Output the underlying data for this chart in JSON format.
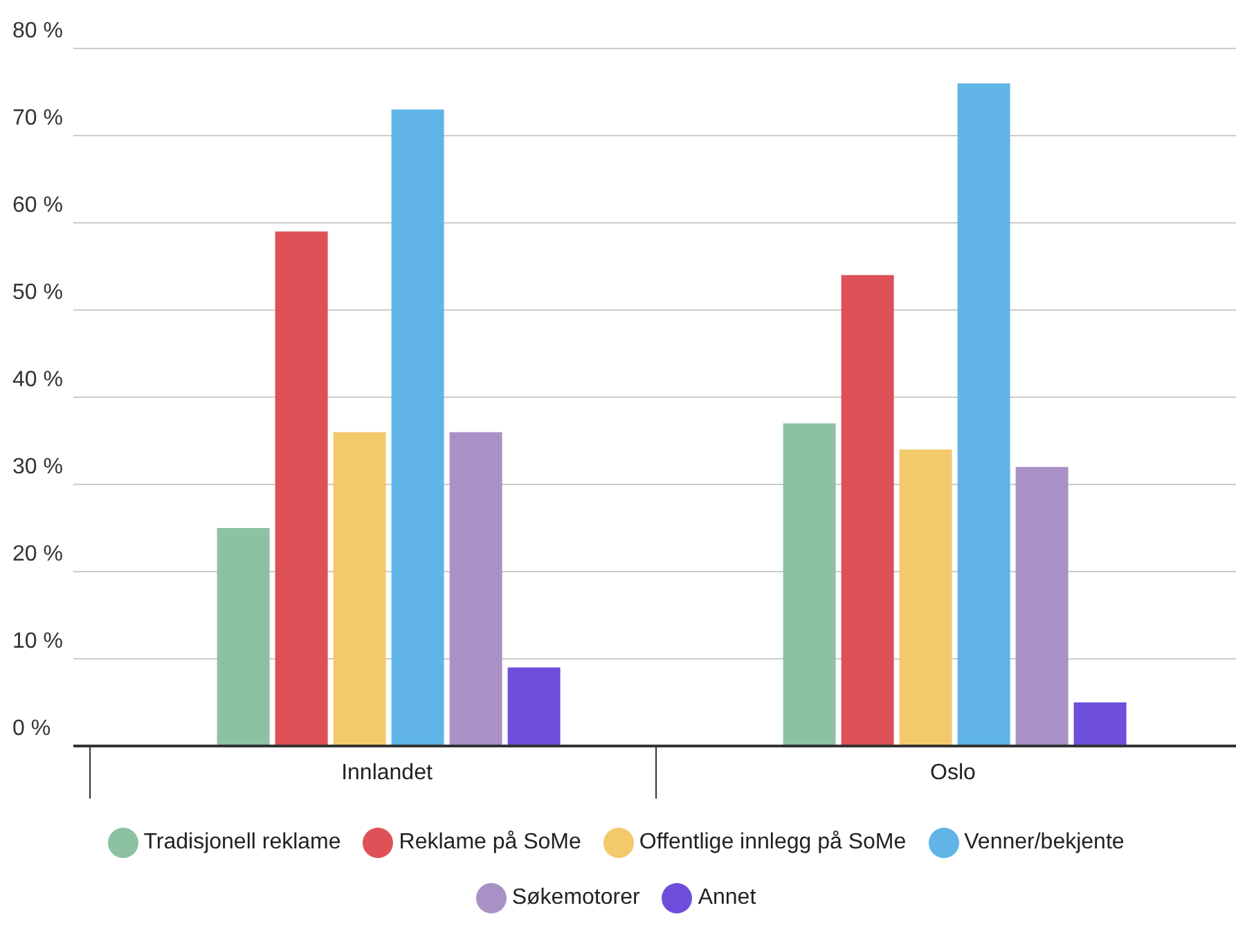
{
  "chart_data": {
    "type": "bar",
    "categories": [
      "Innlandet",
      "Oslo"
    ],
    "series": [
      {
        "name": "Tradisjonell reklame",
        "color": "#8cc2a1",
        "values": [
          25,
          37
        ]
      },
      {
        "name": "Reklame på SoMe",
        "color": "#dd5157",
        "values": [
          59,
          54
        ]
      },
      {
        "name": "Offentlige innlegg på SoMe",
        "color": "#f2c96b",
        "values": [
          36,
          34
        ]
      },
      {
        "name": "Venner/bekjente",
        "color": "#60b4e6",
        "values": [
          73,
          76
        ]
      },
      {
        "name": "Søkemotorer",
        "color": "#a991c5",
        "values": [
          36,
          32
        ]
      },
      {
        "name": "Annet",
        "color": "#6e4fdb",
        "values": [
          9,
          5
        ]
      }
    ],
    "ylim": [
      0,
      80
    ],
    "yticks": [
      {
        "value": 0,
        "label": "0 %"
      },
      {
        "value": 10,
        "label": "10 %"
      },
      {
        "value": 20,
        "label": "20 %"
      },
      {
        "value": 30,
        "label": "30 %"
      },
      {
        "value": 40,
        "label": "40 %"
      },
      {
        "value": 50,
        "label": "50 %"
      },
      {
        "value": 60,
        "label": "60 %"
      },
      {
        "value": 70,
        "label": "70 %"
      },
      {
        "value": 80,
        "label": "80 %"
      }
    ],
    "grid": "y",
    "legend": "bottom"
  }
}
